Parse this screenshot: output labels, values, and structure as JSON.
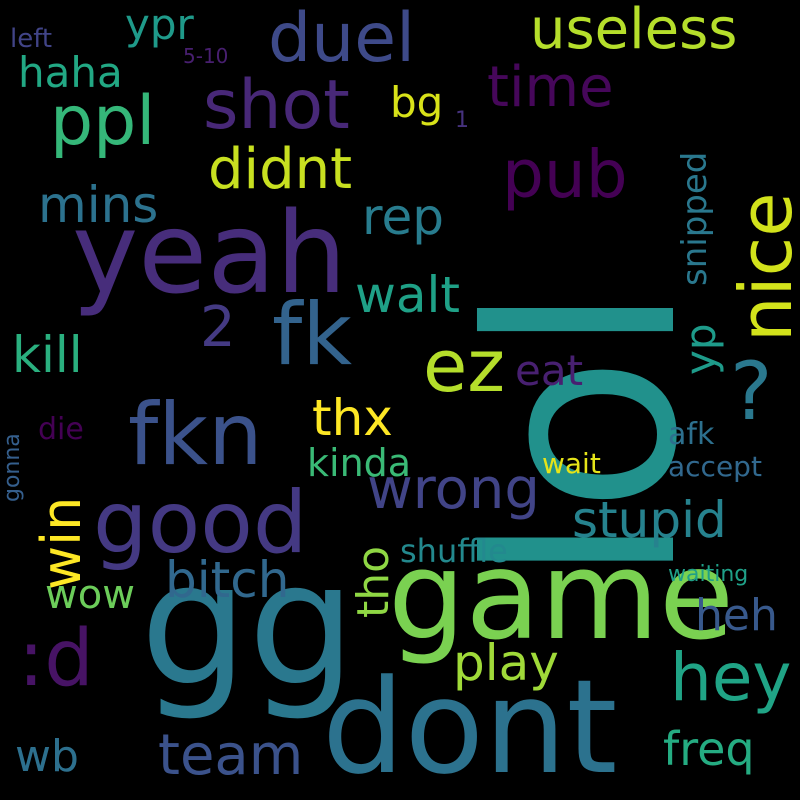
{
  "words": [
    {
      "text": "lol",
      "color": "#21918c"
    },
    {
      "text": "gg",
      "color": "#2a788e"
    },
    {
      "text": "game",
      "color": "#7ad151"
    },
    {
      "text": "dont",
      "color": "#2c728e"
    },
    {
      "text": "yeah",
      "color": "#472d7b"
    },
    {
      "text": "fk",
      "color": "#33638d"
    },
    {
      "text": "fkn",
      "color": "#3b528b"
    },
    {
      "text": "good",
      "color": "#443983"
    },
    {
      "text": "duel",
      "color": "#3e4a89"
    },
    {
      "text": "shot",
      "color": "#482878"
    },
    {
      "text": "ppl",
      "color": "#35b779"
    },
    {
      "text": "useless",
      "color": "#b5de2b"
    },
    {
      "text": "nice",
      "color": "#d2e21b"
    },
    {
      "text": "?",
      "color": "#2a788e"
    },
    {
      "text": "pub",
      "color": "#440154"
    },
    {
      "text": "time",
      "color": "#46075a"
    },
    {
      "text": "ez",
      "color": "#b5de2b"
    },
    {
      "text": "didnt",
      "color": "#c8e020"
    },
    {
      "text": "wrong",
      "color": "#414487"
    },
    {
      "text": "win",
      "color": "#fde725"
    },
    {
      "text": "hey",
      "color": "#20a486"
    },
    {
      "text": ":d",
      "color": "#471365"
    },
    {
      "text": "team",
      "color": "#3b528b"
    },
    {
      "text": "bitch",
      "color": "#31688e"
    },
    {
      "text": "stupid",
      "color": "#26828e"
    },
    {
      "text": "play",
      "color": "#a0da39"
    },
    {
      "text": "kill",
      "color": "#2ab07f"
    },
    {
      "text": "walt",
      "color": "#1fa187"
    },
    {
      "text": "mins",
      "color": "#2c728e"
    },
    {
      "text": "rep",
      "color": "#287c8e"
    },
    {
      "text": "haha",
      "color": "#22a884"
    },
    {
      "text": "ypr",
      "color": "#1f9a8a"
    },
    {
      "text": "bg",
      "color": "#d8e219"
    },
    {
      "text": "eat",
      "color": "#482071"
    },
    {
      "text": "thx",
      "color": "#fde725"
    },
    {
      "text": "kinda",
      "color": "#3aba76"
    },
    {
      "text": "tho",
      "color": "#8fd744"
    },
    {
      "text": "shuffle",
      "color": "#23898e"
    },
    {
      "text": "wow",
      "color": "#6ccd5a"
    },
    {
      "text": "heh",
      "color": "#38598c"
    },
    {
      "text": "freq",
      "color": "#25ac82"
    },
    {
      "text": "wb",
      "color": "#2d708e"
    },
    {
      "text": "2",
      "color": "#443a83"
    },
    {
      "text": "yp",
      "color": "#1e9b8a"
    },
    {
      "text": "snipped",
      "color": "#2a788e"
    },
    {
      "text": "afk",
      "color": "#2d708e"
    },
    {
      "text": "accept",
      "color": "#31688e"
    },
    {
      "text": "wait",
      "color": "#e5e419"
    },
    {
      "text": "waiting",
      "color": "#1fa088"
    },
    {
      "text": "gonna",
      "color": "#355f8d"
    },
    {
      "text": "die",
      "color": "#440154"
    },
    {
      "text": "left",
      "color": "#414487"
    },
    {
      "text": "5-10",
      "color": "#481f70"
    },
    {
      "text": "1",
      "color": "#46327e"
    }
  ]
}
